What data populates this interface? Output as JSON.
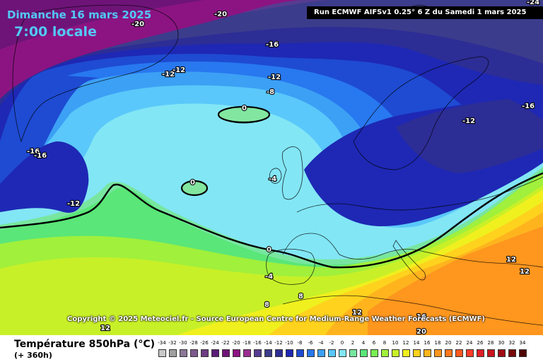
{
  "header": {
    "date": "Dimanche 16 mars 2025",
    "time": "7:00 locale",
    "run": "Run ECMWF AIFSv1 0.25° 6 Z du Samedi 1 mars 2025"
  },
  "copyright": "Copyright © 2025 Meteociel.fr - Source European Centre for Medium-Range Weather Forecasts (ECMWF)",
  "footer": {
    "variable": "Température 850hPa (°C)",
    "lead": "(+ 360h)"
  },
  "legend": {
    "ticks": [
      "-34",
      "-32",
      "-30",
      "-28",
      "-26",
      "-24",
      "-22",
      "-20",
      "-18",
      "-16",
      "-14",
      "-12",
      "-10",
      "-8",
      "-6",
      "-4",
      "-2",
      "0",
      "2",
      "4",
      "6",
      "8",
      "10",
      "12",
      "14",
      "16",
      "18",
      "20",
      "22",
      "24",
      "26",
      "28",
      "30",
      "32",
      "34"
    ],
    "colors": [
      "#c8c8c8",
      "#a0a0a0",
      "#8c7896",
      "#7d5a8c",
      "#6e3c82",
      "#5a1e78",
      "#6e1478",
      "#8c1482",
      "#9b2d91",
      "#553c91",
      "#3c3c8c",
      "#2d2d96",
      "#1e28b4",
      "#1e4bd2",
      "#2878f0",
      "#3ca0f5",
      "#5ac8fa",
      "#82e6f5",
      "#78e6a0",
      "#5ae678",
      "#78f050",
      "#a0f03c",
      "#c8f028",
      "#f0f01e",
      "#ffd21e",
      "#ffb41e",
      "#ff961e",
      "#ff781e",
      "#ff5a1e",
      "#ff3c28",
      "#e11e28",
      "#c8141e",
      "#a00a14",
      "#780a0a",
      "#500505"
    ]
  },
  "contour_labels": [
    {
      "text": "-20",
      "id": "label-minus20-a"
    },
    {
      "text": "-20",
      "id": "label-minus20-b"
    },
    {
      "text": "-24",
      "id": "label-minus24"
    },
    {
      "text": "-16",
      "id": "label-minus16-a"
    },
    {
      "text": "-12",
      "id": "label-minus12-a"
    },
    {
      "text": "-12",
      "id": "label-minus12-b"
    },
    {
      "text": "-12",
      "id": "label-minus12-c"
    },
    {
      "text": "-8",
      "id": "label-minus8"
    },
    {
      "text": "0",
      "id": "label-zero-a"
    },
    {
      "text": "-16",
      "id": "label-minus16-b"
    },
    {
      "text": "-16",
      "id": "label-minus16-c"
    },
    {
      "text": "-16",
      "id": "label-minus16-d"
    },
    {
      "text": "-12",
      "id": "label-minus12-d"
    },
    {
      "text": "-4",
      "id": "label-minus4-a"
    },
    {
      "text": "0",
      "id": "label-zero-b"
    },
    {
      "text": "-12",
      "id": "label-minus12-e"
    },
    {
      "text": "0",
      "id": "label-zero-c"
    },
    {
      "text": "-4",
      "id": "label-minus4-b"
    },
    {
      "text": "8",
      "id": "label-8-a"
    },
    {
      "text": "8",
      "id": "label-8-b"
    },
    {
      "text": "12",
      "id": "label-12-a"
    },
    {
      "text": "12",
      "id": "label-12-b"
    },
    {
      "text": "12",
      "id": "label-12-c"
    },
    {
      "text": "12",
      "id": "label-12-d"
    },
    {
      "text": "16",
      "id": "label-16"
    },
    {
      "text": "20",
      "id": "label-20"
    }
  ],
  "colors": {
    "title_text": "#53c8f5",
    "zero_isotherm": "#000000"
  }
}
